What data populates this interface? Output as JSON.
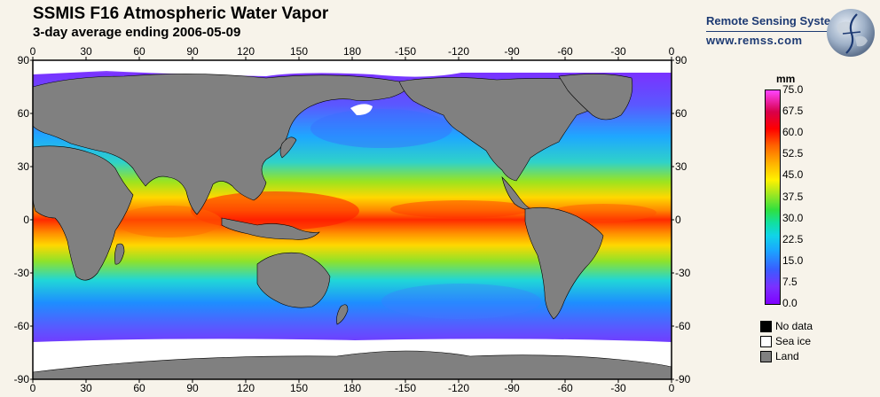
{
  "header": {
    "title": "SSMIS F16 Atmospheric Water Vapor",
    "subtitle": "3-day average ending 2006-05-09"
  },
  "brand": {
    "name": "Remote Sensing Systems",
    "url": "www.remss.com"
  },
  "map": {
    "top_axis_labels": [
      "0",
      "30",
      "60",
      "90",
      "120",
      "150",
      "180",
      "-150",
      "-120",
      "-90",
      "-60",
      "-30",
      "0"
    ],
    "bottom_axis_labels": [
      "0",
      "30",
      "60",
      "90",
      "120",
      "150",
      "180",
      "-150",
      "-120",
      "-90",
      "-60",
      "-30",
      "0"
    ],
    "left_axis_labels": [
      "90",
      "60",
      "30",
      "0",
      "-30",
      "-60",
      "-90"
    ],
    "right_axis_labels": [
      "90",
      "60",
      "30",
      "0",
      "-30",
      "-60",
      "-90"
    ],
    "colors": {
      "land": "#808080",
      "sea_ice": "#ffffff",
      "no_data": "#000000"
    }
  },
  "colorbar": {
    "unit": "mm",
    "labels": [
      "75.0",
      "67.5",
      "60.0",
      "52.5",
      "45.0",
      "37.5",
      "30.0",
      "22.5",
      "15.0",
      "7.5",
      "0.0"
    ],
    "min": 0,
    "max": 75
  },
  "legend": [
    {
      "label": "No data",
      "color": "#000000"
    },
    {
      "label": "Sea ice",
      "color": "#ffffff"
    },
    {
      "label": "Land",
      "color": "#808080"
    }
  ]
}
